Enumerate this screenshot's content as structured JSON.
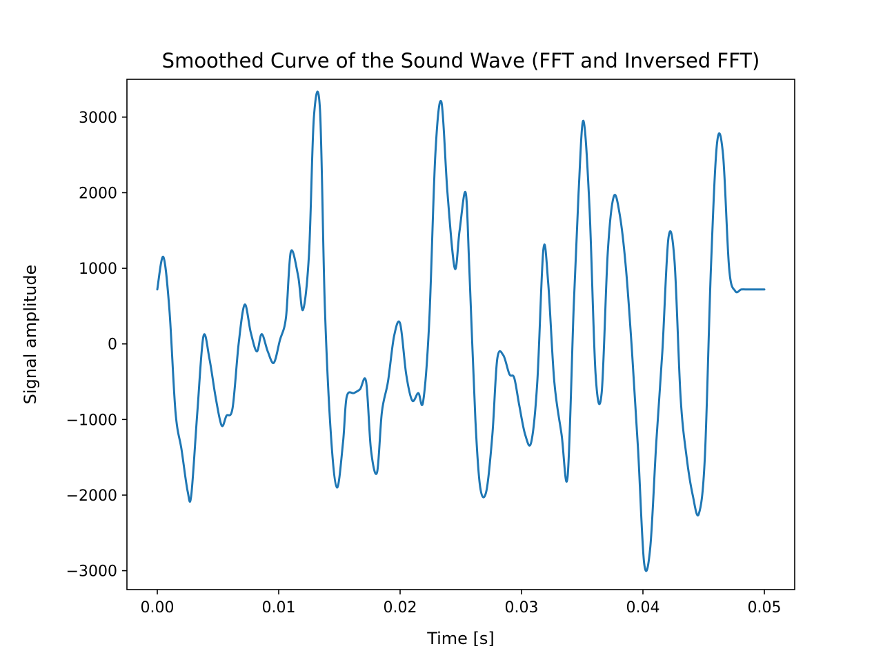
{
  "chart_data": {
    "type": "line",
    "title": "Smoothed Curve of the Sound Wave (FFT and Inversed FFT)",
    "xlabel": "Time [s]",
    "ylabel": "Signal amplitude",
    "xlim": [
      -0.0025,
      0.0525
    ],
    "ylim": [
      -3250,
      3500
    ],
    "grid": false,
    "x_ticks": [
      0.0,
      0.01,
      0.02,
      0.03,
      0.04,
      0.05
    ],
    "x_tick_labels": [
      "0.00",
      "0.01",
      "0.02",
      "0.03",
      "0.04",
      "0.05"
    ],
    "y_ticks": [
      -3000,
      -2000,
      -1000,
      0,
      1000,
      2000,
      3000
    ],
    "y_tick_labels": [
      "−3000",
      "−2000",
      "−1000",
      "0",
      "1000",
      "2000",
      "3000"
    ],
    "colors": {
      "line": "#1f77b4"
    },
    "series": [
      {
        "x": [
          0.0,
          0.0005,
          0.001,
          0.0015,
          0.002,
          0.0025,
          0.0028,
          0.0033,
          0.0038,
          0.0043,
          0.0048,
          0.0053,
          0.0057,
          0.0062,
          0.0067,
          0.0072,
          0.0077,
          0.0082,
          0.0086,
          0.0091,
          0.0096,
          0.0101,
          0.0106,
          0.011,
          0.0116,
          0.012,
          0.0125,
          0.0129,
          0.0134,
          0.0138,
          0.0143,
          0.0148,
          0.0153,
          0.0156,
          0.0162,
          0.0167,
          0.0172,
          0.0176,
          0.0181,
          0.0185,
          0.019,
          0.0195,
          0.02,
          0.0205,
          0.021,
          0.0215,
          0.0219,
          0.0224,
          0.0229,
          0.0234,
          0.0239,
          0.0245,
          0.0249,
          0.0254,
          0.0257,
          0.0262,
          0.0266,
          0.0271,
          0.0276,
          0.028,
          0.0285,
          0.029,
          0.0294,
          0.0298,
          0.0303,
          0.0308,
          0.0313,
          0.0318,
          0.0322,
          0.0327,
          0.0333,
          0.0338,
          0.0343,
          0.0347,
          0.0351,
          0.0356,
          0.0361,
          0.0366,
          0.0371,
          0.0376,
          0.0381,
          0.0386,
          0.0391,
          0.0396,
          0.0401,
          0.0406,
          0.0411,
          0.0416,
          0.0421,
          0.0426,
          0.0431,
          0.0436,
          0.0441,
          0.0446,
          0.0451,
          0.0456,
          0.0461,
          0.0466,
          0.0471,
          0.0476,
          0.0481,
          0.0486,
          0.049,
          0.0495,
          0.05
        ],
        "y": [
          720,
          1150,
          450,
          -900,
          -1400,
          -1950,
          -2000,
          -900,
          100,
          -200,
          -700,
          -1080,
          -950,
          -850,
          0,
          520,
          150,
          -100,
          130,
          -100,
          -250,
          50,
          350,
          1220,
          900,
          450,
          1200,
          3000,
          3100,
          500,
          -1200,
          -1900,
          -1300,
          -700,
          -650,
          -600,
          -500,
          -1400,
          -1700,
          -900,
          -500,
          100,
          270,
          -400,
          -750,
          -650,
          -760,
          300,
          2500,
          3200,
          2000,
          1000,
          1500,
          2000,
          1000,
          -1000,
          -1900,
          -1950,
          -1200,
          -200,
          -150,
          -400,
          -450,
          -800,
          -1200,
          -1300,
          -500,
          1250,
          800,
          -500,
          -1200,
          -1750,
          500,
          2000,
          2950,
          1800,
          -400,
          -650,
          1200,
          1950,
          1700,
          1000,
          -100,
          -1400,
          -2900,
          -2700,
          -1300,
          -100,
          1400,
          1100,
          -700,
          -1500,
          -2000,
          -2250,
          -1500,
          1000,
          2650,
          2500,
          1000,
          700,
          720,
          720,
          720,
          720,
          720
        ]
      }
    ]
  }
}
